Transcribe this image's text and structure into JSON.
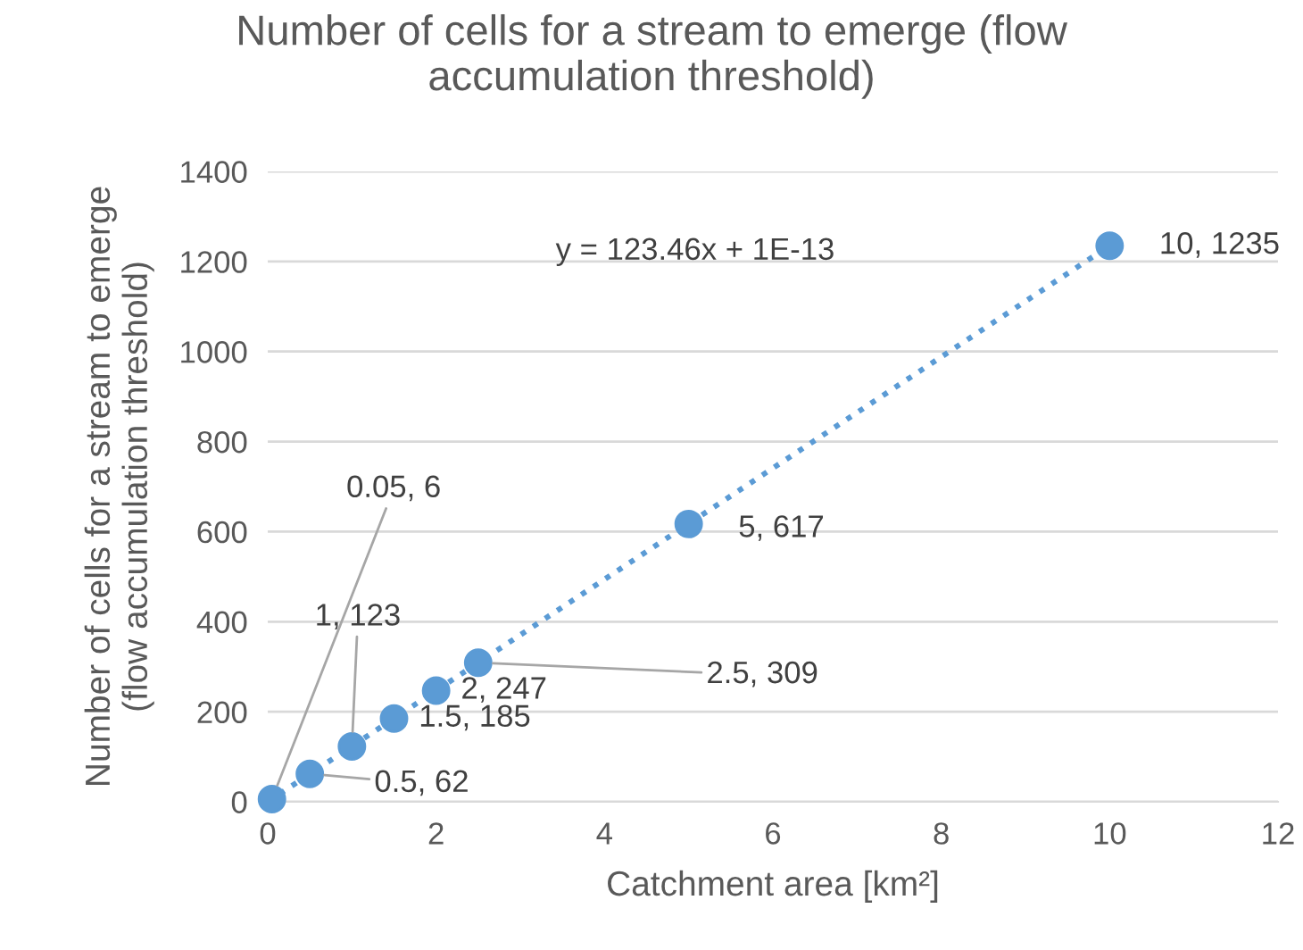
{
  "chart_data": {
    "type": "scatter",
    "title": "Number of cells for a stream to emerge (flow\naccumulation threshold)",
    "xlabel": "Catchment area [km²]",
    "ylabel": "Number of cells for a stream to emerge\n(flow accumulation threshold)",
    "xlim": [
      0,
      12
    ],
    "xticks": [
      0,
      2,
      4,
      6,
      8,
      10,
      12
    ],
    "ylim": [
      0,
      1400
    ],
    "yticks": [
      0,
      200,
      400,
      600,
      800,
      1000,
      1200,
      1400
    ],
    "grid": "y",
    "legend": false,
    "annotations": [
      "y = 123.46x + 1E-13"
    ],
    "series": [
      {
        "color": "#5b9bd5",
        "marker": "circle",
        "x": [
          0.05,
          0.5,
          1,
          1.5,
          2,
          2.5,
          5,
          10
        ],
        "values": [
          6,
          62,
          123,
          185,
          247,
          309,
          617,
          1235
        ],
        "value_labels": [
          "0.05, 6",
          "0.5, 62",
          "1, 123",
          "1.5, 185",
          "2, 247",
          "2.5, 309",
          "5, 617",
          "10, 1235"
        ]
      },
      {
        "type": "line",
        "color": "#5b9bd5",
        "line_style": "dotted",
        "marker": "none",
        "x": [
          0,
          10
        ],
        "values": [
          0,
          1235
        ]
      }
    ]
  }
}
